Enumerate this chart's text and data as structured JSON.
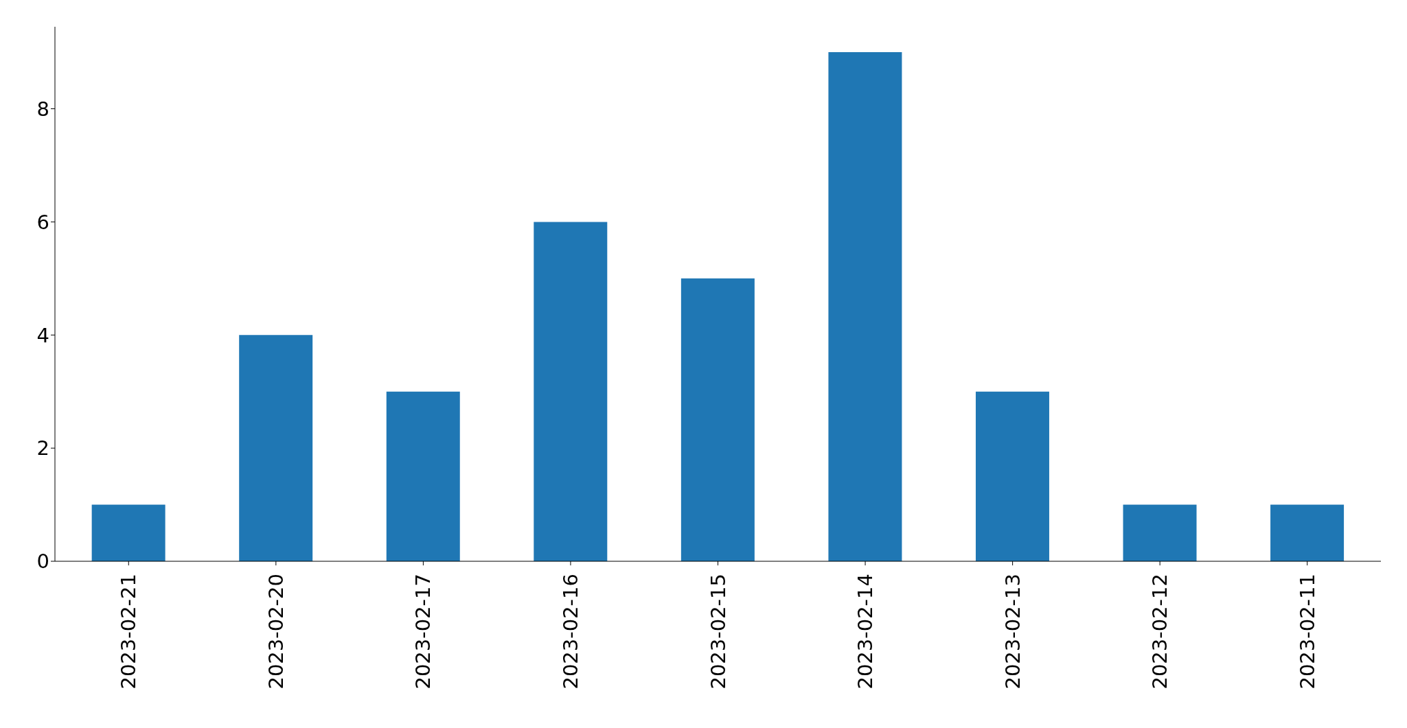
{
  "chart_data": {
    "type": "bar",
    "categories": [
      "2023-02-21",
      "2023-02-20",
      "2023-02-17",
      "2023-02-16",
      "2023-02-15",
      "2023-02-14",
      "2023-02-13",
      "2023-02-12",
      "2023-02-11"
    ],
    "values": [
      1,
      4,
      3,
      6,
      5,
      9,
      3,
      1,
      1
    ],
    "color": "#1f77b4",
    "ylim": [
      0,
      9.45
    ],
    "yticks": [
      0,
      2,
      4,
      6,
      8
    ],
    "grid": false,
    "legend": false
  }
}
